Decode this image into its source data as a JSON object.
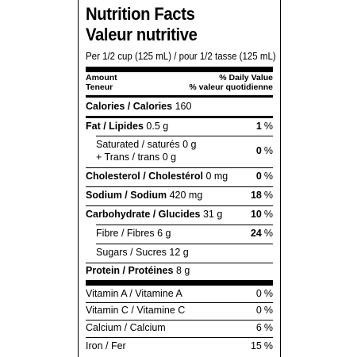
{
  "title_en": "Nutrition Facts",
  "title_fr": "Valeur nutritive",
  "serving": "Per 1/2 cup (125 mL) / pour 1/2 tasse (125 mL)",
  "header": {
    "amount_en": "Amount",
    "amount_fr": "Teneur",
    "dv_en": "% Daily Value",
    "dv_fr": "% valeur quotidienne"
  },
  "calories": {
    "label": "Calories / Calories",
    "value": "160"
  },
  "fat": {
    "label": "Fat / Lipides",
    "amount": "0.5 g",
    "pct": "1",
    "sym": "%"
  },
  "saturated": {
    "line1": "Saturated / saturés 0 g",
    "line2": "+ Trans / trans 0 g",
    "pct": "0",
    "sym": "%"
  },
  "cholesterol": {
    "label": "Cholesterol / Cholestérol",
    "amount": "0 mg",
    "pct": "0",
    "sym": "%"
  },
  "sodium": {
    "label": "Sodium / Sodium",
    "amount": "420 mg",
    "pct": "18",
    "sym": "%"
  },
  "carbohydrate": {
    "label": "Carbohydrate / Glucides",
    "amount": "31 g",
    "pct": "10",
    "sym": "%"
  },
  "fibre": {
    "label": "Fibre / Fibres 6 g",
    "pct": "24",
    "sym": "%"
  },
  "sugars": {
    "label": "Sugars / Sucres 12 g"
  },
  "protein": {
    "label": "Protein / Protéines",
    "amount": "8 g"
  },
  "vitamin_a": {
    "label": "Vitamin A / Vitamine A",
    "pct": "0",
    "sym": "%"
  },
  "vitamin_c": {
    "label": "Vitamin C / Vitamine C",
    "pct": "0",
    "sym": "%"
  },
  "calcium": {
    "label": "Calcium / Calcium",
    "pct": "6",
    "sym": "%"
  },
  "iron": {
    "label": "Iron / Fer",
    "pct": "15",
    "sym": "%"
  }
}
